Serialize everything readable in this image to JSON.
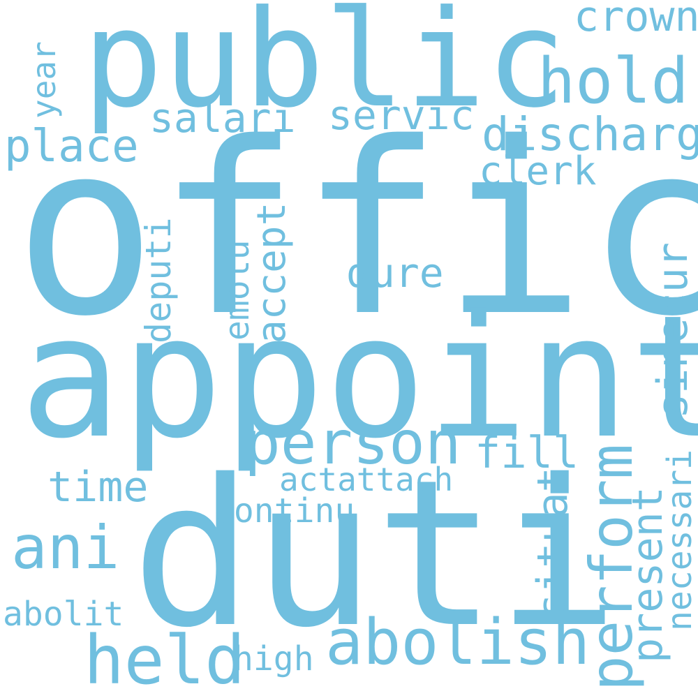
{
  "word_color": "#70bfdf",
  "background_color": "#ffffff",
  "words": {
    "offic": "offic",
    "appoint": "appoint",
    "duti": "duti",
    "public": "public",
    "hold": "hold",
    "crown": "crown",
    "salari": "salari",
    "servic": "servic",
    "discharg": "discharg",
    "place": "place",
    "year": "year",
    "clerk": "clerk",
    "deputi": "deputi",
    "emolu": "emolu",
    "accept": "accept",
    "dure": "dure",
    "sinecur": "sinecur",
    "person": "person",
    "fill": "fill",
    "perform": "perform",
    "necessari": "necessari",
    "time": "time",
    "actattach": "actattach",
    "continu": "continu",
    "situat": "situat",
    "present": "present",
    "ani": "ani",
    "abolit": "abolit",
    "held": "held",
    "high": "high",
    "abolish": "abolish"
  }
}
